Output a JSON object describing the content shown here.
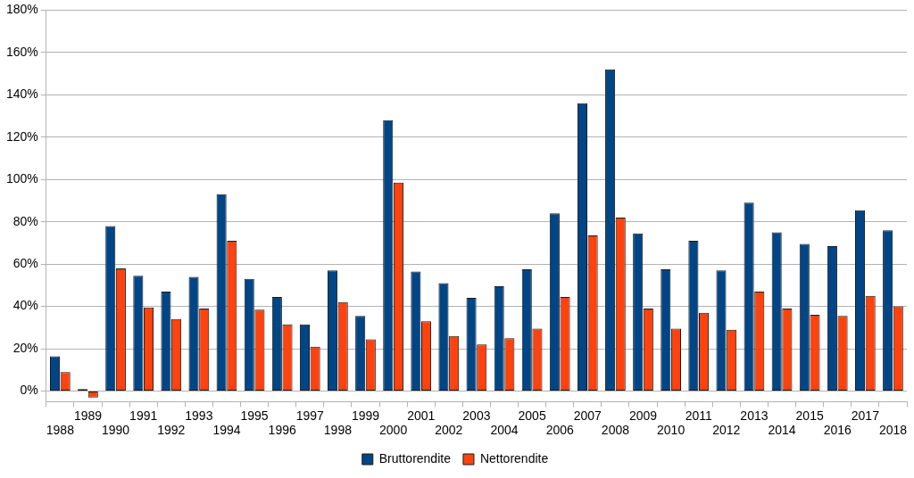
{
  "chart_data": {
    "type": "bar",
    "categories": [
      "1988",
      "1989",
      "1990",
      "1991",
      "1992",
      "1993",
      "1994",
      "1995",
      "1996",
      "1997",
      "1998",
      "1999",
      "2000",
      "2001",
      "2002",
      "2003",
      "2004",
      "2005",
      "2006",
      "2007",
      "2008",
      "2009",
      "2010",
      "2011",
      "2012",
      "2013",
      "2014",
      "2015",
      "2016",
      "2017",
      "2018"
    ],
    "series": [
      {
        "name": "Bruttorendite",
        "color": "#004586",
        "values": [
          16.5,
          1,
          78,
          54.5,
          47,
          54,
          93,
          53,
          44.5,
          31.5,
          57,
          35.5,
          128,
          56.5,
          51,
          44,
          49.5,
          57.5,
          84,
          136,
          152,
          74.5,
          57.5,
          71,
          57,
          89,
          75,
          69.5,
          68.5,
          85.5,
          76
        ]
      },
      {
        "name": "Nettorendite",
        "color": "#ff420e",
        "values": [
          9,
          -3,
          58,
          39.5,
          34,
          39,
          71,
          38.5,
          31.5,
          21,
          42,
          24.5,
          98.5,
          33,
          26,
          22,
          25,
          29.5,
          44.5,
          73.5,
          82,
          39,
          29.5,
          37,
          29,
          47,
          39,
          36,
          35.5,
          45,
          40
        ]
      }
    ],
    "ylim": [
      -5,
      180
    ],
    "yticks": [
      {
        "value": 0,
        "label": "0%"
      },
      {
        "value": 20,
        "label": "20%"
      },
      {
        "value": 40,
        "label": "40%"
      },
      {
        "value": 60,
        "label": "60%"
      },
      {
        "value": 80,
        "label": "80%"
      },
      {
        "value": 100,
        "label": "100%"
      },
      {
        "value": 120,
        "label": "120%"
      },
      {
        "value": 140,
        "label": "140%"
      },
      {
        "value": 160,
        "label": "160%"
      },
      {
        "value": 180,
        "label": "180%"
      }
    ],
    "grid": true,
    "legend": "bottom"
  }
}
